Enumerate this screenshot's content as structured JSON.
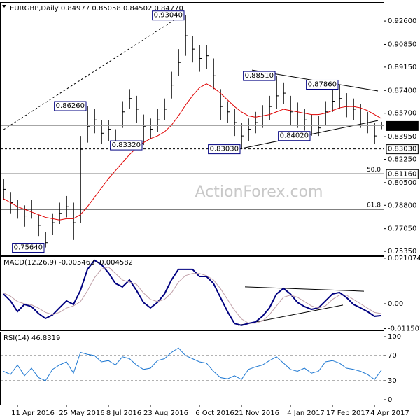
{
  "chart_data": [
    {
      "type": "ohlc",
      "title": "EURGBP,Daily 0.84977 0.85058 0.84502 0.84770",
      "watermark": "ActionForex.com",
      "ylim": [
        0.7504,
        0.9402
      ],
      "yticks": [
        {
          "value": 0.926,
          "label": "0.92600"
        },
        {
          "value": 0.9085,
          "label": "0.90850"
        },
        {
          "value": 0.8915,
          "label": "0.89150"
        },
        {
          "value": 0.874,
          "label": "0.87400"
        },
        {
          "value": 0.857,
          "label": "0.85700"
        },
        {
          "value": 0.8395,
          "label": "0.83950"
        },
        {
          "value": 0.8225,
          "label": "0.82250"
        },
        {
          "value": 0.805,
          "label": "0.80500"
        },
        {
          "value": 0.788,
          "label": "0.78800"
        },
        {
          "value": 0.7705,
          "label": "0.77050"
        },
        {
          "value": 0.7535,
          "label": "0.75350"
        }
      ],
      "color": "#000000",
      "high": [
        0.808,
        0.798,
        0.792,
        0.788,
        0.792,
        0.781,
        0.768,
        0.782,
        0.79,
        0.795,
        0.79,
        0.84,
        0.8626,
        0.86,
        0.852,
        0.852,
        0.845,
        0.866,
        0.875,
        0.87,
        0.856,
        0.853,
        0.86,
        0.868,
        0.888,
        0.905,
        0.9304,
        0.915,
        0.908,
        0.908,
        0.898,
        0.875,
        0.866,
        0.86,
        0.85,
        0.853,
        0.858,
        0.863,
        0.87,
        0.8851,
        0.88,
        0.87,
        0.865,
        0.86,
        0.856,
        0.855,
        0.866,
        0.875,
        0.8786,
        0.872,
        0.868,
        0.864,
        0.858,
        0.85,
        0.85058
      ],
      "low": [
        0.792,
        0.782,
        0.778,
        0.772,
        0.778,
        0.765,
        0.7564,
        0.766,
        0.774,
        0.779,
        0.762,
        0.775,
        0.835,
        0.842,
        0.834,
        0.836,
        0.834,
        0.846,
        0.86,
        0.85,
        0.8332,
        0.838,
        0.843,
        0.852,
        0.868,
        0.885,
        0.9,
        0.895,
        0.888,
        0.89,
        0.875,
        0.852,
        0.85,
        0.84,
        0.8303,
        0.836,
        0.842,
        0.846,
        0.852,
        0.86,
        0.864,
        0.848,
        0.846,
        0.844,
        0.8402,
        0.84,
        0.848,
        0.858,
        0.86,
        0.854,
        0.852,
        0.846,
        0.842,
        0.834,
        0.84502
      ],
      "close": [
        0.8,
        0.79,
        0.785,
        0.78,
        0.785,
        0.773,
        0.76,
        0.775,
        0.782,
        0.787,
        0.775,
        0.83,
        0.847,
        0.852,
        0.842,
        0.845,
        0.835,
        0.858,
        0.868,
        0.86,
        0.847,
        0.845,
        0.852,
        0.86,
        0.878,
        0.895,
        0.915,
        0.905,
        0.898,
        0.9,
        0.885,
        0.862,
        0.858,
        0.85,
        0.84,
        0.845,
        0.85,
        0.855,
        0.862,
        0.87,
        0.872,
        0.858,
        0.855,
        0.852,
        0.848,
        0.846,
        0.858,
        0.866,
        0.868,
        0.862,
        0.86,
        0.855,
        0.85,
        0.84,
        0.8477
      ],
      "ma": {
        "color": "#e00000",
        "values": [
          0.793,
          0.79,
          0.787,
          0.785,
          0.783,
          0.781,
          0.779,
          0.778,
          0.777,
          0.778,
          0.778,
          0.781,
          0.787,
          0.794,
          0.801,
          0.808,
          0.814,
          0.82,
          0.826,
          0.831,
          0.835,
          0.838,
          0.84,
          0.843,
          0.848,
          0.855,
          0.863,
          0.87,
          0.876,
          0.879,
          0.876,
          0.872,
          0.867,
          0.862,
          0.858,
          0.855,
          0.854,
          0.855,
          0.856,
          0.858,
          0.86,
          0.859,
          0.858,
          0.857,
          0.856,
          0.856,
          0.857,
          0.859,
          0.861,
          0.862,
          0.862,
          0.861,
          0.859,
          0.856,
          0.853
        ]
      },
      "annotations": [
        {
          "value": 0.9304,
          "label": "0.93040",
          "bar": 26
        },
        {
          "value": 0.8626,
          "label": "0.86260",
          "bar": 12
        },
        {
          "value": 0.8332,
          "label": "0.83320",
          "bar": 20
        },
        {
          "value": 0.8303,
          "label": "0.83030",
          "bar": 34
        },
        {
          "value": 0.8851,
          "label": "0.88510",
          "bar": 39
        },
        {
          "value": 0.8786,
          "label": "0.87860",
          "bar": 48
        },
        {
          "value": 0.8402,
          "label": "0.84020",
          "bar": 44
        },
        {
          "value": 0.7564,
          "label": "0.75640",
          "bar": 6
        }
      ],
      "price_labels": [
        {
          "value": 0.8477,
          "label": "0.84770",
          "current": true
        },
        {
          "value": 0.8303,
          "label": "0.83030"
        },
        {
          "value": 0.8116,
          "label": "0.81160"
        }
      ],
      "levels": [
        {
          "value": 0.8303,
          "dashed": true
        },
        {
          "value": 0.8116,
          "label": "50.0"
        },
        {
          "value": 0.785,
          "label": "61.8"
        }
      ],
      "trendlines": [
        {
          "from": [
            0,
            0.8447
          ],
          "to": [
            25.7,
            0.9312
          ],
          "dashed": true
        },
        {
          "from": [
            35.5,
            0.8893
          ],
          "to": [
            53.5,
            0.8736
          ]
        },
        {
          "from": [
            34,
            0.8306
          ],
          "to": [
            53.5,
            0.8515
          ]
        }
      ]
    },
    {
      "type": "line",
      "title": "MACD(12,26,9) -0.005463 -0.004582",
      "ylim": [
        -0.0123,
        0.022
      ],
      "yticks": [
        0.021074,
        {
          "value": 0,
          "label": "0.00"
        },
        -0.011507
      ],
      "series": [
        {
          "color": "#000080",
          "width": 2,
          "values": [
            0.0045,
            0.0013,
            -0.0036,
            -0.0003,
            -0.0013,
            -0.0045,
            -0.0068,
            -0.0052,
            -0.0019,
            0.0013,
            -0.0003,
            0.0062,
            0.0159,
            0.0201,
            0.0181,
            0.0143,
            0.0094,
            0.0078,
            0.011,
            0.0062,
            0.0006,
            -0.0019,
            0.0006,
            0.0045,
            0.011,
            0.0159,
            0.0159,
            0.0159,
            0.0126,
            0.0126,
            0.0094,
            0.0029,
            -0.0036,
            -0.0091,
            -0.01,
            -0.0091,
            -0.0084,
            -0.0058,
            -0.0019,
            0.0045,
            0.0071,
            0.0045,
            0.0006,
            -0.0013,
            -0.0026,
            -0.0019,
            0.0013,
            0.0045,
            0.0052,
            0.0029,
            -0.0003,
            -0.0019,
            -0.0036,
            -0.0058,
            -0.005463
          ]
        },
        {
          "color": "#c0a0a8",
          "width": 1,
          "values": [
            0.005,
            0.0035,
            0.001,
            0.0,
            -0.0005,
            -0.002,
            -0.004,
            -0.005,
            -0.004,
            -0.002,
            -0.001,
            0.001,
            0.006,
            0.012,
            0.016,
            0.017,
            0.014,
            0.011,
            0.01,
            0.009,
            0.005,
            0.002,
            0.001,
            0.002,
            0.005,
            0.01,
            0.013,
            0.014,
            0.014,
            0.013,
            0.011,
            0.007,
            0.002,
            -0.003,
            -0.007,
            -0.009,
            -0.009,
            -0.008,
            -0.005,
            -0.001,
            0.003,
            0.004,
            0.003,
            0.001,
            -0.001,
            -0.002,
            -0.001,
            0.002,
            0.004,
            0.004,
            0.002,
            0.0,
            -0.002,
            -0.004,
            -0.004582
          ]
        }
      ],
      "trendlines": [
        {
          "from": [
            34.5,
            0.0078
          ],
          "to": [
            51.5,
            0.0058
          ]
        },
        {
          "from": [
            33.5,
            -0.01
          ],
          "to": [
            48.5,
            -0.0006
          ]
        }
      ]
    },
    {
      "type": "line",
      "title": "RSI(14) 46.8319",
      "ylim": [
        -7.8,
        107.8
      ],
      "yticks": [
        100,
        70,
        30,
        0
      ],
      "dashed_levels": [
        70,
        30
      ],
      "series": [
        {
          "color": "#1e78d2",
          "width": 1,
          "values": [
            45,
            40,
            55,
            38,
            50,
            35,
            30,
            48,
            55,
            60,
            42,
            75,
            72,
            70,
            60,
            62,
            55,
            68,
            65,
            55,
            48,
            50,
            62,
            65,
            75,
            82,
            70,
            65,
            60,
            58,
            45,
            35,
            33,
            38,
            32,
            48,
            52,
            55,
            62,
            68,
            58,
            48,
            45,
            50,
            42,
            45,
            60,
            62,
            58,
            50,
            48,
            45,
            40,
            32,
            46.8319
          ]
        }
      ],
      "categories": [
        null,
        null,
        "11 Apr 2016",
        null,
        null,
        null,
        null,
        null,
        null,
        "25 May 2016",
        null,
        null,
        null,
        null,
        null,
        "8 Jul 2016",
        null,
        null,
        null,
        null,
        null,
        "23 Aug 2016",
        null,
        null,
        null,
        null,
        null,
        null,
        "6 Oct 2016",
        null,
        null,
        null,
        null,
        null,
        "21 Nov 2016",
        null,
        null,
        null,
        null,
        null,
        null,
        "4 Jan 2017",
        null,
        null,
        null,
        null,
        null,
        "17 Feb 2017",
        null,
        null,
        null,
        null,
        null,
        "4 Apr 2017",
        null
      ]
    }
  ]
}
